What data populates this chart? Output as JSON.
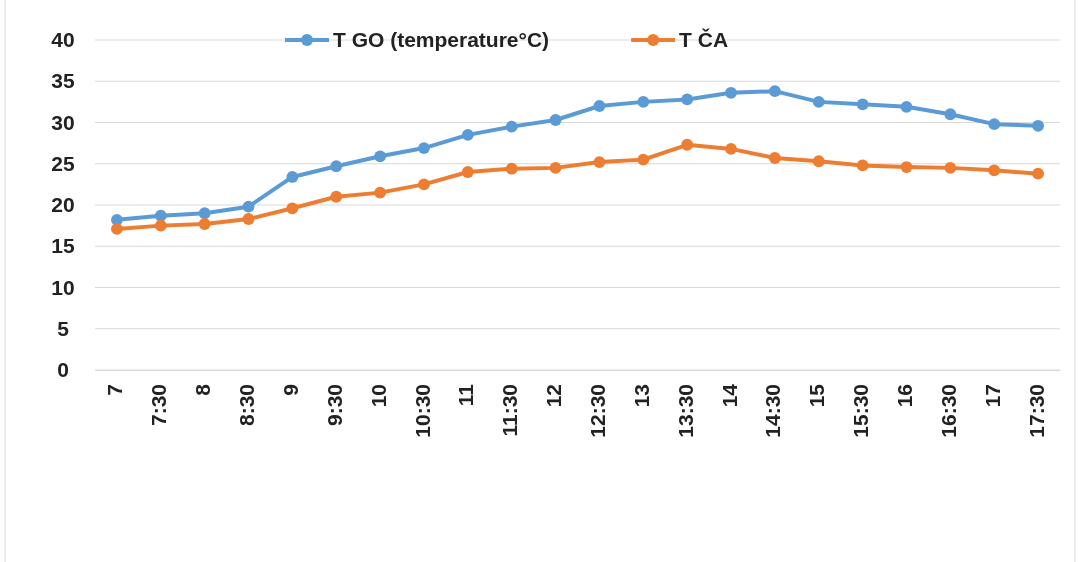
{
  "chart_data": {
    "type": "line",
    "categories": [
      "7",
      "7:30",
      "8",
      "8:30",
      "9",
      "9:30",
      "10",
      "10:30",
      "11",
      "11:30",
      "12",
      "12:30",
      "13",
      "13:30",
      "14",
      "14:30",
      "15",
      "15:30",
      "16",
      "16:30",
      "17",
      "17:30"
    ],
    "series": [
      {
        "name": "T GO (temperature°C)",
        "color": "#5b9bd5",
        "values": [
          18.2,
          18.7,
          19.0,
          19.8,
          23.4,
          24.7,
          25.9,
          26.9,
          28.5,
          29.5,
          30.3,
          32.0,
          32.5,
          32.8,
          33.6,
          33.8,
          32.5,
          32.2,
          31.9,
          31.0,
          29.8,
          29.6
        ]
      },
      {
        "name": "T ČA",
        "color": "#ed7d31",
        "values": [
          17.1,
          17.5,
          17.7,
          18.3,
          19.6,
          21.0,
          21.5,
          22.5,
          24.0,
          24.4,
          24.5,
          25.2,
          25.5,
          27.3,
          26.8,
          25.7,
          25.3,
          24.8,
          24.6,
          24.5,
          24.2,
          23.8
        ]
      }
    ],
    "ylim": [
      0,
      40
    ],
    "yticks": [
      0,
      5,
      10,
      15,
      20,
      25,
      30,
      35,
      40
    ],
    "grid": "y",
    "legend": "top",
    "marker": "circle",
    "line_style": "solid"
  }
}
